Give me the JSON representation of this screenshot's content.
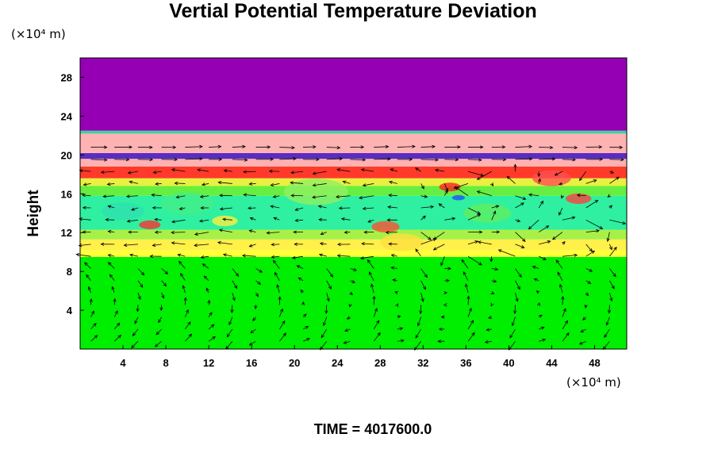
{
  "chart_data": {
    "type": "heatmap",
    "title": "Vertial Potential Temperature Deviation",
    "ylabel": "Height",
    "xunit": "(×10⁴ m)",
    "yunit": "(×10⁴ m)",
    "footer": "TIME = 4017600.0",
    "xlim": [
      0,
      51
    ],
    "ylim": [
      0,
      30
    ],
    "x_ticks": [
      4,
      8,
      12,
      16,
      20,
      24,
      28,
      32,
      36,
      40,
      44,
      48
    ],
    "y_ticks": [
      4,
      8,
      12,
      16,
      20,
      24,
      28
    ],
    "grid": false,
    "overlay": "wind vectors",
    "color_bands": [
      {
        "y0": 0.0,
        "y1": 9.5,
        "color": "#00ee00"
      },
      {
        "y0": 9.5,
        "y1": 10.2,
        "color": "#ffff3a"
      },
      {
        "y0": 10.2,
        "y1": 11.3,
        "color": "#fff04a"
      },
      {
        "y0": 11.3,
        "y1": 12.3,
        "color": "#a8f048"
      },
      {
        "y0": 12.3,
        "y1": 15.8,
        "color": "#2ef0a0"
      },
      {
        "y0": 15.8,
        "y1": 16.8,
        "color": "#66ee40"
      },
      {
        "y0": 16.8,
        "y1": 17.6,
        "color": "#e8f040"
      },
      {
        "y0": 17.6,
        "y1": 18.8,
        "color": "#ff3a2a"
      },
      {
        "y0": 18.8,
        "y1": 19.6,
        "color": "#ffb0b0"
      },
      {
        "y0": 19.6,
        "y1": 20.2,
        "color": "#5a2cc0"
      },
      {
        "y0": 20.2,
        "y1": 22.2,
        "color": "#ffb2b2"
      },
      {
        "y0": 22.2,
        "y1": 22.5,
        "color": "#40d0a0"
      },
      {
        "y0": 22.5,
        "y1": 30.0,
        "color": "#9500b5"
      }
    ],
    "colors": {
      "upper": "#9500b5",
      "lower": "#00ee00"
    }
  }
}
